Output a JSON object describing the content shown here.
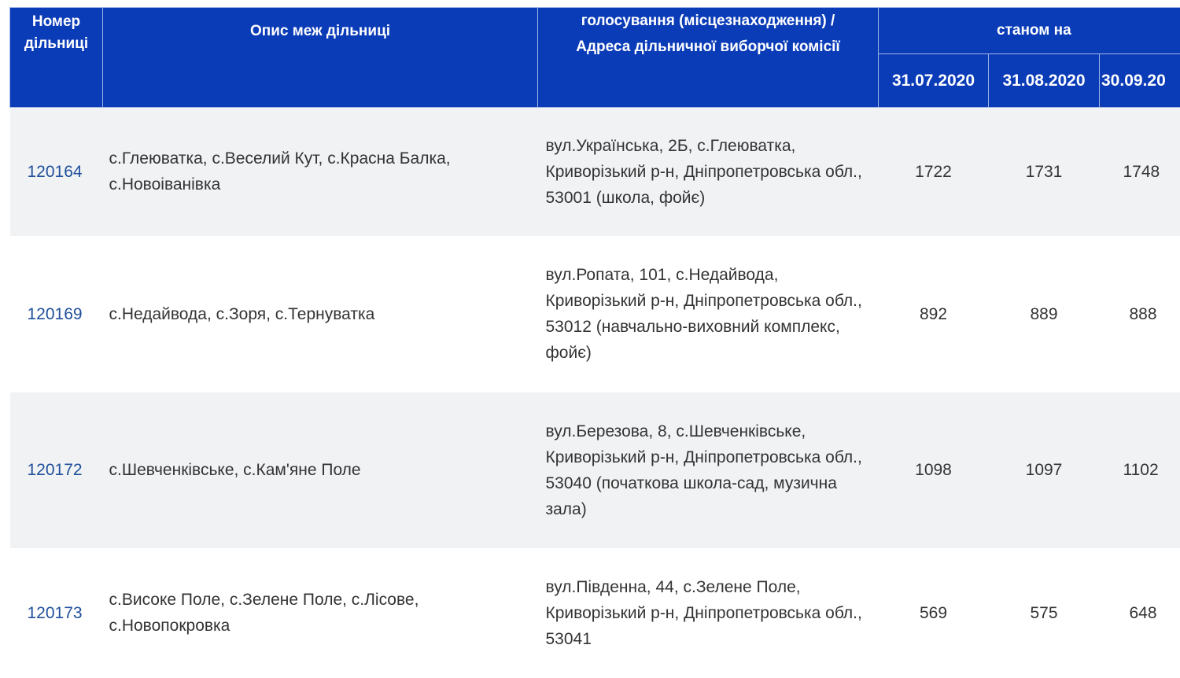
{
  "header": {
    "col_number": "Номер дільниці",
    "col_description": "Опис меж дільниці",
    "col_address": "голосування (місцезнаходження) / Адреса дільничної виборчої комісії",
    "col_state": "станом на",
    "dates": [
      "31.07.2020",
      "31.08.2020",
      "30.09.20"
    ]
  },
  "rows": [
    {
      "number": "120164",
      "description": "с.Глеюватка, с.Веселий Кут, с.Красна Балка, с.Новоіванівка",
      "address": "вул.Українська, 2Б, с.Глеюватка, Криворізький р-н, Дніпропетровська обл., 53001 (школа, фойє)",
      "values": [
        "1722",
        "1731",
        "1748"
      ]
    },
    {
      "number": "120169",
      "description": "с.Недайвода, с.Зоря, с.Тернуватка",
      "address": "вул.Ропата, 101, с.Недайвода, Криворізький р-н, Дніпропетровська обл., 53012 (навчально-виховний комплекс, фойє)",
      "values": [
        "892",
        "889",
        "888"
      ]
    },
    {
      "number": "120172",
      "description": "с.Шевченківське, с.Кам'яне Поле",
      "address": "вул.Березова, 8, с.Шевченківське, Криворізький р-н, Дніпропетровська обл., 53040 (початкова школа-сад, музична зала)",
      "values": [
        "1098",
        "1097",
        "1102"
      ]
    },
    {
      "number": "120173",
      "description": "с.Високе Поле, с.Зелене Поле, с.Лісове, с.Новопокровка",
      "address": "вул.Південна, 44, с.Зелене Поле, Криворізький р-н, Дніпропетровська обл., 53041",
      "values": [
        "569",
        "575",
        "648"
      ]
    }
  ],
  "colors": {
    "header_bg": "#0b3cb8",
    "row_alt": "#f1f2f4",
    "link": "#1f4f9c"
  }
}
